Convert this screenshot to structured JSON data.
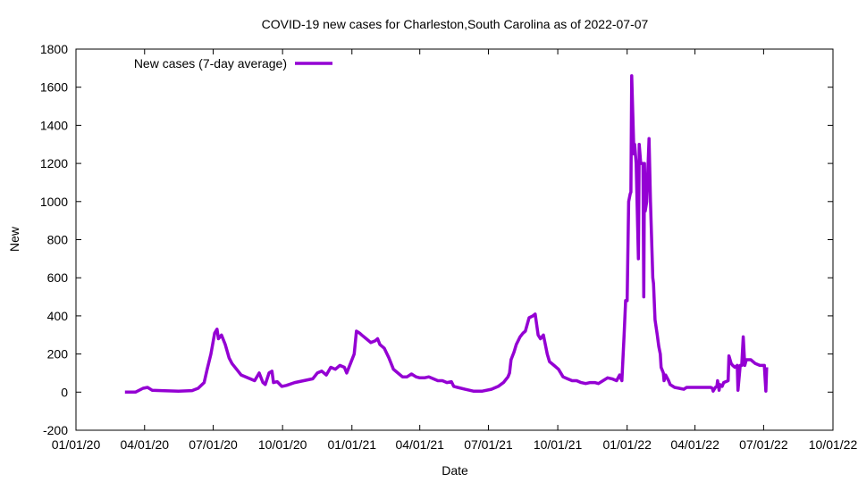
{
  "chart_data": {
    "type": "line",
    "title": "COVID-19 new cases for Charleston,South Carolina as of 2022-07-07",
    "xlabel": "Date",
    "ylabel": "New",
    "ylim": [
      -200,
      1800
    ],
    "yticks": [
      -200,
      0,
      200,
      400,
      600,
      800,
      1000,
      1200,
      1400,
      1600,
      1800
    ],
    "xlim_days_from_2020_01_01": [
      0,
      1004
    ],
    "xticks": [
      {
        "day": 0,
        "label": "01/01/20"
      },
      {
        "day": 91,
        "label": "04/01/20"
      },
      {
        "day": 182,
        "label": "07/01/20"
      },
      {
        "day": 274,
        "label": "10/01/20"
      },
      {
        "day": 366,
        "label": "01/01/21"
      },
      {
        "day": 456,
        "label": "04/01/21"
      },
      {
        "day": 547,
        "label": "07/01/21"
      },
      {
        "day": 639,
        "label": "10/01/21"
      },
      {
        "day": 731,
        "label": "01/01/22"
      },
      {
        "day": 821,
        "label": "04/01/22"
      },
      {
        "day": 912,
        "label": "07/01/22"
      },
      {
        "day": 1004,
        "label": "10/01/22"
      }
    ],
    "legend_position": "top-left",
    "series": [
      {
        "name": "New cases (7-day average)",
        "color": "#9400d3",
        "x_unit": "days since 2020-01-01",
        "points": [
          [
            65,
            0
          ],
          [
            79,
            0
          ],
          [
            89,
            20
          ],
          [
            95,
            25
          ],
          [
            101,
            10
          ],
          [
            113,
            8
          ],
          [
            136,
            5
          ],
          [
            154,
            8
          ],
          [
            162,
            20
          ],
          [
            170,
            50
          ],
          [
            174,
            120
          ],
          [
            179,
            200
          ],
          [
            184,
            310
          ],
          [
            187,
            330
          ],
          [
            189,
            280
          ],
          [
            193,
            300
          ],
          [
            198,
            250
          ],
          [
            203,
            180
          ],
          [
            207,
            150
          ],
          [
            213,
            120
          ],
          [
            219,
            90
          ],
          [
            231,
            70
          ],
          [
            237,
            60
          ],
          [
            243,
            100
          ],
          [
            248,
            50
          ],
          [
            251,
            40
          ],
          [
            256,
            100
          ],
          [
            260,
            110
          ],
          [
            262,
            50
          ],
          [
            267,
            55
          ],
          [
            273,
            30
          ],
          [
            279,
            35
          ],
          [
            290,
            50
          ],
          [
            302,
            60
          ],
          [
            314,
            70
          ],
          [
            320,
            100
          ],
          [
            326,
            110
          ],
          [
            332,
            90
          ],
          [
            338,
            130
          ],
          [
            344,
            120
          ],
          [
            350,
            140
          ],
          [
            356,
            130
          ],
          [
            359,
            100
          ],
          [
            364,
            150
          ],
          [
            369,
            200
          ],
          [
            372,
            320
          ],
          [
            376,
            310
          ],
          [
            379,
            300
          ],
          [
            385,
            280
          ],
          [
            391,
            260
          ],
          [
            397,
            270
          ],
          [
            400,
            280
          ],
          [
            403,
            250
          ],
          [
            409,
            230
          ],
          [
            415,
            180
          ],
          [
            421,
            120
          ],
          [
            427,
            100
          ],
          [
            433,
            80
          ],
          [
            439,
            80
          ],
          [
            445,
            95
          ],
          [
            451,
            80
          ],
          [
            456,
            75
          ],
          [
            462,
            75
          ],
          [
            468,
            80
          ],
          [
            474,
            70
          ],
          [
            480,
            60
          ],
          [
            486,
            60
          ],
          [
            492,
            50
          ],
          [
            498,
            55
          ],
          [
            501,
            30
          ],
          [
            506,
            25
          ],
          [
            516,
            15
          ],
          [
            527,
            5
          ],
          [
            539,
            5
          ],
          [
            551,
            15
          ],
          [
            560,
            30
          ],
          [
            567,
            50
          ],
          [
            573,
            80
          ],
          [
            575,
            100
          ],
          [
            577,
            170
          ],
          [
            581,
            210
          ],
          [
            584,
            250
          ],
          [
            589,
            290
          ],
          [
            593,
            310
          ],
          [
            596,
            320
          ],
          [
            601,
            390
          ],
          [
            606,
            400
          ],
          [
            609,
            410
          ],
          [
            613,
            300
          ],
          [
            616,
            280
          ],
          [
            620,
            300
          ],
          [
            625,
            200
          ],
          [
            628,
            160
          ],
          [
            634,
            140
          ],
          [
            640,
            120
          ],
          [
            646,
            80
          ],
          [
            652,
            70
          ],
          [
            658,
            60
          ],
          [
            664,
            60
          ],
          [
            670,
            50
          ],
          [
            676,
            45
          ],
          [
            682,
            50
          ],
          [
            688,
            50
          ],
          [
            693,
            45
          ],
          [
            699,
            60
          ],
          [
            705,
            75
          ],
          [
            711,
            70
          ],
          [
            717,
            60
          ],
          [
            721,
            90
          ],
          [
            724,
            60
          ],
          [
            727,
            300
          ],
          [
            729,
            480
          ],
          [
            731,
            480
          ],
          [
            733,
            1000
          ],
          [
            735,
            1040
          ],
          [
            736,
            1050
          ],
          [
            737,
            1660
          ],
          [
            740,
            1250
          ],
          [
            741,
            1300
          ],
          [
            743,
            1200
          ],
          [
            746,
            700
          ],
          [
            747,
            1300
          ],
          [
            749,
            1200
          ],
          [
            752,
            1200
          ],
          [
            753,
            500
          ],
          [
            754,
            1200
          ],
          [
            755,
            950
          ],
          [
            757,
            1000
          ],
          [
            760,
            1330
          ],
          [
            762,
            1000
          ],
          [
            765,
            600
          ],
          [
            766,
            570
          ],
          [
            768,
            380
          ],
          [
            771,
            300
          ],
          [
            773,
            240
          ],
          [
            775,
            200
          ],
          [
            776,
            130
          ],
          [
            779,
            100
          ],
          [
            780,
            60
          ],
          [
            782,
            90
          ],
          [
            786,
            60
          ],
          [
            788,
            40
          ],
          [
            794,
            25
          ],
          [
            800,
            20
          ],
          [
            806,
            15
          ],
          [
            810,
            25
          ],
          [
            818,
            25
          ],
          [
            836,
            25
          ],
          [
            842,
            25
          ],
          [
            844,
            20
          ],
          [
            845,
            5
          ],
          [
            848,
            25
          ],
          [
            850,
            30
          ],
          [
            851,
            60
          ],
          [
            853,
            10
          ],
          [
            854,
            40
          ],
          [
            857,
            30
          ],
          [
            859,
            50
          ],
          [
            865,
            60
          ],
          [
            866,
            190
          ],
          [
            869,
            150
          ],
          [
            871,
            140
          ],
          [
            874,
            130
          ],
          [
            877,
            140
          ],
          [
            878,
            10
          ],
          [
            881,
            140
          ],
          [
            883,
            140
          ],
          [
            885,
            290
          ],
          [
            887,
            140
          ],
          [
            889,
            170
          ],
          [
            895,
            170
          ],
          [
            901,
            150
          ],
          [
            907,
            140
          ],
          [
            913,
            140
          ],
          [
            915,
            5
          ],
          [
            916,
            130
          ]
        ]
      }
    ]
  }
}
